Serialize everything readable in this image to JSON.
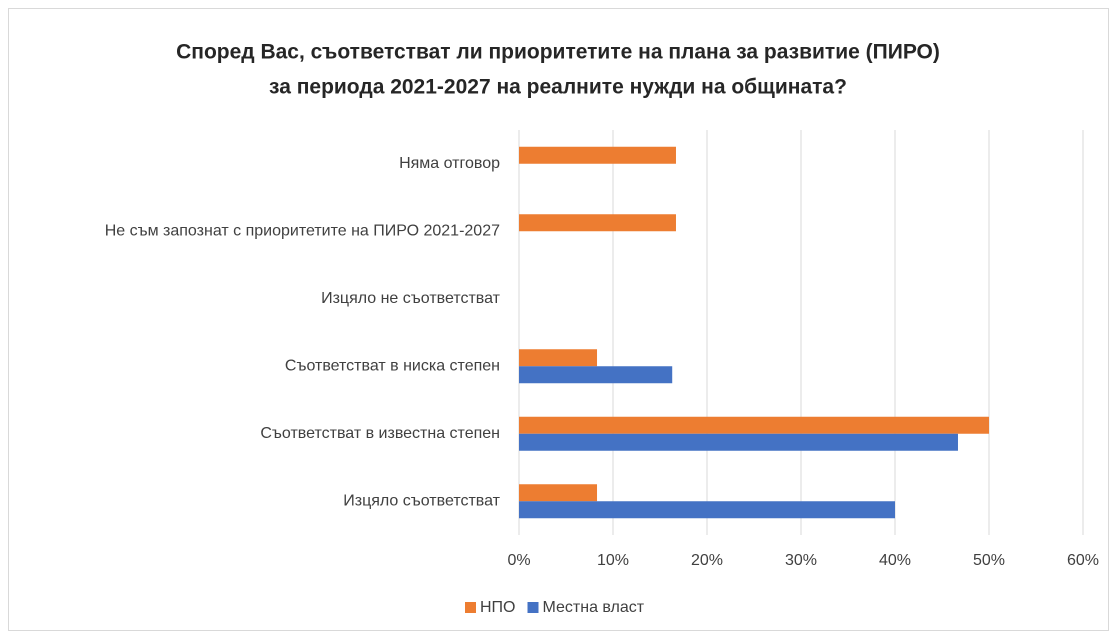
{
  "chart_data": {
    "type": "barh",
    "title": [
      "Според Вас, съответстват ли приоритетите на плана за развитие (ПИРО)",
      "за периода 2021-2027 на реалните нужди на общината?"
    ],
    "categories": [
      "Няма отговор",
      "Не съм запознат с приоритетите на ПИРО 2021-2027",
      "Изцяло не съответстват",
      "Съответстват в ниска степен",
      "Съответстват в известна степен",
      "Изцяло съответстват"
    ],
    "series": [
      {
        "name": "НПО",
        "color": "#ed7d31",
        "values": [
          16.7,
          16.7,
          0,
          8.3,
          50,
          8.3
        ]
      },
      {
        "name": "Местна власт",
        "color": "#4472c4",
        "values": [
          0,
          0,
          0,
          16.3,
          46.7,
          40
        ]
      }
    ],
    "xlim": [
      0,
      60
    ],
    "xticks": [
      {
        "value": 0,
        "label": "0%"
      },
      {
        "value": 10,
        "label": "10%"
      },
      {
        "value": 20,
        "label": "20%"
      },
      {
        "value": 30,
        "label": "30%"
      },
      {
        "value": 40,
        "label": "40%"
      },
      {
        "value": 50,
        "label": "50%"
      },
      {
        "value": 60,
        "label": "60%"
      }
    ],
    "grid": true,
    "legend": "bottom"
  }
}
